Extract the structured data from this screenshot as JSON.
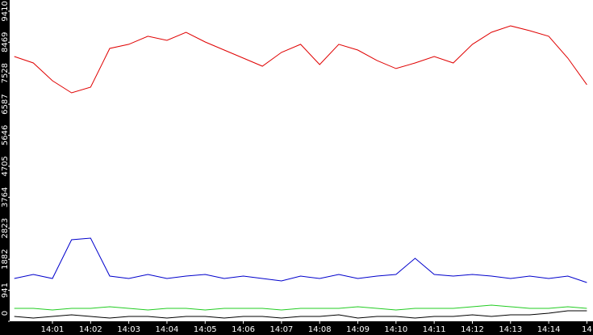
{
  "chart_data": {
    "type": "line",
    "x": [
      0,
      0.5,
      1,
      1.5,
      2,
      2.5,
      3,
      3.5,
      4,
      4.5,
      5,
      5.5,
      6,
      6.5,
      7,
      7.5,
      8,
      8.5,
      9,
      9.5,
      10,
      10.5,
      11,
      11.5,
      12,
      12.5,
      13,
      13.5,
      14,
      14.5,
      15
    ],
    "series": [
      {
        "name": "red",
        "color": "#e00000",
        "values": [
          8036,
          7840,
          7301,
          6934,
          7105,
          8281,
          8404,
          8649,
          8526,
          8771,
          8477,
          8232,
          7987,
          7742,
          8159,
          8404,
          7791,
          8404,
          8232,
          7914,
          7669,
          7840,
          8036,
          7840,
          8404,
          8771,
          8967,
          8820,
          8649,
          7987,
          7179
        ]
      },
      {
        "name": "blue",
        "color": "#0000cc",
        "values": [
          1299,
          1421,
          1299,
          2475,
          2524,
          1372,
          1299,
          1421,
          1299,
          1372,
          1421,
          1299,
          1372,
          1299,
          1225,
          1372,
          1299,
          1421,
          1299,
          1372,
          1421,
          1911,
          1421,
          1372,
          1421,
          1372,
          1299,
          1372,
          1299,
          1372,
          1176
        ]
      },
      {
        "name": "green",
        "color": "#22cc22",
        "values": [
          392,
          392,
          343,
          392,
          392,
          441,
          392,
          343,
          392,
          392,
          343,
          392,
          392,
          392,
          343,
          392,
          392,
          392,
          441,
          392,
          343,
          392,
          392,
          392,
          441,
          490,
          441,
          392,
          392,
          441,
          392
        ]
      },
      {
        "name": "black",
        "color": "#000000",
        "values": [
          147,
          98,
          147,
          196,
          147,
          98,
          147,
          147,
          98,
          147,
          147,
          98,
          147,
          147,
          98,
          147,
          147,
          196,
          98,
          147,
          147,
          98,
          147,
          147,
          196,
          147,
          196,
          196,
          245,
          319,
          319
        ]
      }
    ],
    "xlim": [
      -0.12,
      15.16
    ],
    "xticks": [
      {
        "value": 1,
        "label": "14:01"
      },
      {
        "value": 2,
        "label": "14:02"
      },
      {
        "value": 3,
        "label": "14:03"
      },
      {
        "value": 4,
        "label": "14:04"
      },
      {
        "value": 5,
        "label": "14:05"
      },
      {
        "value": 6,
        "label": "14:06"
      },
      {
        "value": 7,
        "label": "14:07"
      },
      {
        "value": 8,
        "label": "14:08"
      },
      {
        "value": 9,
        "label": "14:09"
      },
      {
        "value": 10,
        "label": "14:10"
      },
      {
        "value": 11,
        "label": "14:11"
      },
      {
        "value": 12,
        "label": "14:12"
      },
      {
        "value": 13,
        "label": "14:13"
      },
      {
        "value": 14,
        "label": "14:14"
      },
      {
        "value": 15,
        "label": "14"
      }
    ],
    "ylim": [
      0,
      9750
    ],
    "yticks": [
      0,
      941,
      1882,
      2823,
      3764,
      4705,
      5646,
      6587,
      7528,
      8469,
      9410
    ]
  }
}
